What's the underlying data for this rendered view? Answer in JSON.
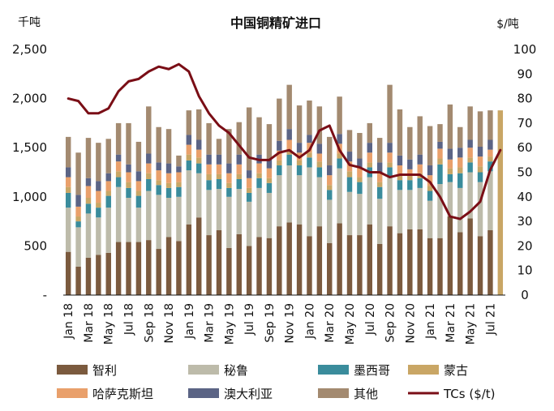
{
  "chart_data": {
    "type": "bar",
    "title": "中国铜精矿进口",
    "left_unit": "千吨",
    "right_unit": "$/吨",
    "left_ticks": [
      "-",
      "500",
      "1,000",
      "1,500",
      "2,000",
      "2,500"
    ],
    "right_ticks": [
      "0",
      "10",
      "20",
      "30",
      "40",
      "50",
      "60",
      "70",
      "80",
      "90",
      "100"
    ],
    "ylim_left": [
      0,
      2500
    ],
    "ylim_right": [
      0,
      100
    ],
    "categories": [
      "Jan 18",
      "Feb 18",
      "Mar 18",
      "Apr 18",
      "May 18",
      "Jun 18",
      "Jul 18",
      "Aug 18",
      "Sep 18",
      "Oct 18",
      "Nov 18",
      "Dec 18",
      "Jan 19",
      "Feb 19",
      "Mar 19",
      "Apr 19",
      "May 19",
      "Jun 19",
      "Jul 19",
      "Aug 19",
      "Sep 19",
      "Oct 19",
      "Nov 19",
      "Dec 19",
      "Jan 20",
      "Feb 20",
      "Mar 20",
      "Apr 20",
      "May 20",
      "Jun 20",
      "Jul 20",
      "Aug 20",
      "Sep 20",
      "Oct 20",
      "Nov 20",
      "Dec 20",
      "Jan 21",
      "Feb 21",
      "Mar 21",
      "Apr 21",
      "May 21",
      "Jun 21",
      "Jul 21",
      "Aug 21"
    ],
    "x_tick_labels": [
      "Jan 18",
      "Mar 18",
      "May 18",
      "Jul 18",
      "Sep 18",
      "Nov 18",
      "Jan 19",
      "Mar 19",
      "May 19",
      "Jul 19",
      "Sep 19",
      "Nov 19",
      "Jan 20",
      "Mar 20",
      "May 20",
      "Jul 20",
      "Sep 20",
      "Nov 20",
      "Jan 21",
      "Mar 21",
      "May 21",
      "Jul 21"
    ],
    "series": [
      {
        "name": "智利",
        "color": "#7B5A3E",
        "values": [
          440,
          290,
          380,
          410,
          430,
          540,
          540,
          540,
          560,
          470,
          590,
          550,
          720,
          790,
          610,
          660,
          480,
          620,
          500,
          590,
          580,
          700,
          740,
          720,
          600,
          700,
          530,
          730,
          610,
          610,
          720,
          520,
          700,
          630,
          670,
          670,
          580,
          580,
          800,
          640,
          780,
          600,
          660,
          0
        ]
      },
      {
        "name": "秘鲁",
        "color": "#BDBBAA",
        "values": [
          450,
          400,
          450,
          380,
          460,
          560,
          450,
          350,
          500,
          550,
          400,
          450,
          550,
          450,
          460,
          420,
          520,
          460,
          450,
          500,
          460,
          520,
          580,
          500,
          700,
          500,
          440,
          560,
          440,
          420,
          480,
          460,
          500,
          440,
          400,
          420,
          380,
          550,
          350,
          450,
          470,
          550,
          600,
          0
        ]
      },
      {
        "name": "墨西哥",
        "color": "#3A8C9C",
        "values": [
          150,
          60,
          100,
          100,
          120,
          100,
          100,
          120,
          120,
          100,
          100,
          100,
          100,
          100,
          100,
          100,
          90,
          100,
          90,
          100,
          100,
          100,
          110,
          100,
          100,
          100,
          100,
          100,
          150,
          120,
          100,
          120,
          100,
          100,
          100,
          100,
          100,
          200,
          80,
          150,
          100,
          100,
          100,
          0
        ]
      },
      {
        "name": "蒙古",
        "color": "#C9A665",
        "values": [
          60,
          50,
          60,
          50,
          50,
          60,
          60,
          50,
          60,
          50,
          50,
          50,
          60,
          60,
          60,
          50,
          50,
          50,
          50,
          50,
          50,
          50,
          50,
          50,
          50,
          60,
          50,
          50,
          60,
          50,
          50,
          50,
          50,
          50,
          50,
          50,
          50,
          60,
          60,
          60,
          50,
          60,
          50,
          1880
        ]
      },
      {
        "name": "哈萨克斯坦",
        "color": "#E9A06B",
        "values": [
          100,
          100,
          120,
          120,
          100,
          100,
          100,
          100,
          100,
          100,
          100,
          100,
          100,
          80,
          100,
          100,
          100,
          100,
          100,
          100,
          100,
          100,
          100,
          80,
          100,
          80,
          100,
          100,
          100,
          100,
          100,
          100,
          100,
          100,
          60,
          90,
          110,
          100,
          90,
          100,
          100,
          100,
          70,
          0
        ]
      },
      {
        "name": "澳大利亚",
        "color": "#5B6485",
        "values": [
          100,
          120,
          80,
          100,
          80,
          70,
          80,
          100,
          100,
          80,
          100,
          60,
          100,
          100,
          100,
          100,
          100,
          100,
          80,
          90,
          90,
          100,
          110,
          100,
          80,
          100,
          100,
          100,
          100,
          90,
          100,
          100,
          100,
          100,
          100,
          100,
          100,
          70,
          110,
          100,
          80,
          100,
          100,
          0
        ]
      },
      {
        "name": "其他",
        "color": "#A38A70",
        "values": [
          310,
          430,
          410,
          390,
          350,
          320,
          420,
          300,
          480,
          360,
          350,
          110,
          250,
          310,
          320,
          160,
          350,
          330,
          640,
          380,
          360,
          430,
          450,
          380,
          350,
          380,
          290,
          380,
          220,
          260,
          200,
          250,
          590,
          470,
          330,
          390,
          400,
          180,
          450,
          210,
          340,
          360,
          300,
          0
        ]
      }
    ],
    "line_series": {
      "name": "TCs ($/t)",
      "color": "#7A0E16",
      "axis": "right",
      "values": [
        80,
        79,
        74,
        74,
        76,
        83,
        87,
        88,
        91,
        93,
        92,
        94,
        91,
        81,
        74,
        69,
        66,
        61,
        56,
        55,
        55,
        58,
        59,
        56,
        59,
        67,
        69,
        59,
        53,
        52,
        50,
        50,
        48,
        49,
        49,
        49,
        46,
        40,
        32,
        31,
        34,
        38,
        51,
        59
      ]
    },
    "legend": [
      {
        "label": "智利",
        "color": "#7B5A3E",
        "kind": "swatch"
      },
      {
        "label": "秘鲁",
        "color": "#BDBBAA",
        "kind": "swatch"
      },
      {
        "label": "墨西哥",
        "color": "#3A8C9C",
        "kind": "swatch"
      },
      {
        "label": "蒙古",
        "color": "#C9A665",
        "kind": "swatch"
      },
      {
        "label": "哈萨克斯坦",
        "color": "#E9A06B",
        "kind": "swatch"
      },
      {
        "label": "澳大利亚",
        "color": "#5B6485",
        "kind": "swatch"
      },
      {
        "label": "其他",
        "color": "#A38A70",
        "kind": "swatch"
      },
      {
        "label": "TCs ($/t)",
        "color": "#7A0E16",
        "kind": "line"
      }
    ],
    "legend_position": "bottom",
    "grid": false
  }
}
